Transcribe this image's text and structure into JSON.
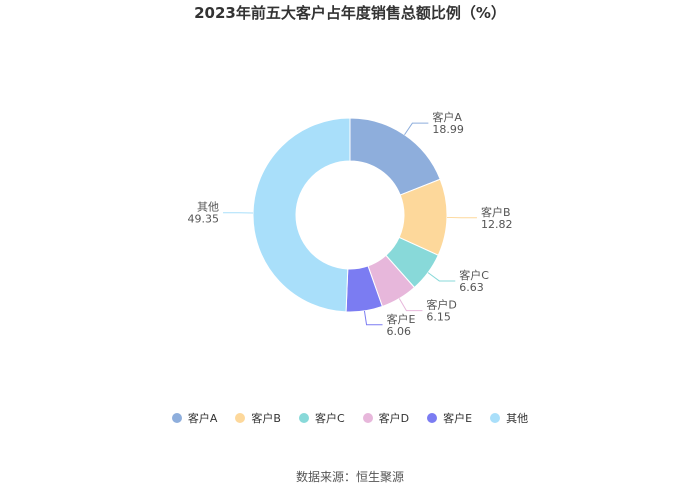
{
  "chart_data": {
    "type": "pie",
    "donut": true,
    "title": "2023年前五大客户占年度销售总额比例（%）",
    "categories": [
      "客户A",
      "客户B",
      "客户C",
      "客户D",
      "客户E",
      "其他"
    ],
    "values": [
      18.99,
      12.82,
      6.63,
      6.15,
      6.06,
      49.35
    ],
    "value_labels": [
      "18.99",
      "12.82",
      "6.63",
      "6.15",
      "6.06",
      "49.35"
    ],
    "colors": [
      "#8eaedc",
      "#fdd89b",
      "#88d9d9",
      "#e7b7db",
      "#7b7cf2",
      "#a9dffa"
    ],
    "legend_position": "bottom"
  },
  "source": "数据来源：恒生聚源"
}
